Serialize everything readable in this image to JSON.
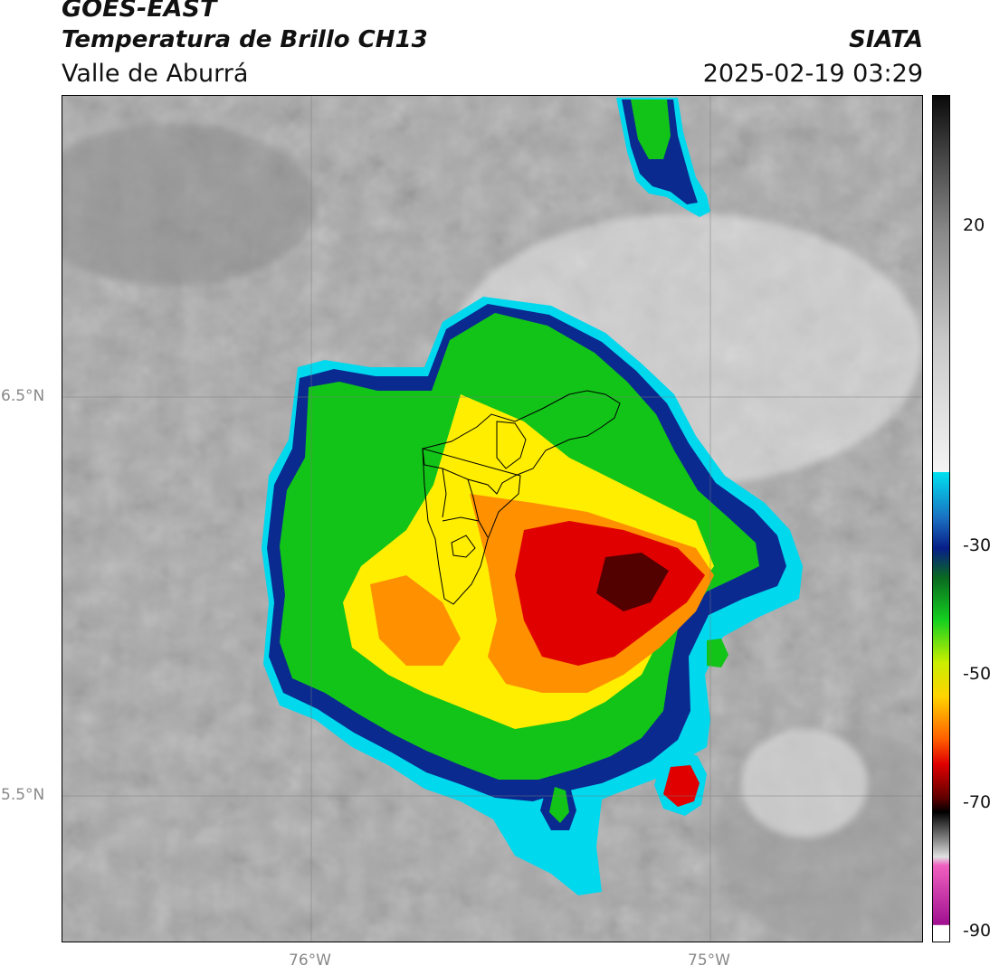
{
  "header": {
    "satellite": "GOES-EAST",
    "product": "Temperatura de Brillo CH13",
    "region": "Valle de Aburrá",
    "organization": "SIATA",
    "timestamp": "2025-02-19 03:29"
  },
  "map": {
    "lat_labels": [
      "6.5°N",
      "5.5°N"
    ],
    "lon_labels": [
      "76°W",
      "75°W"
    ]
  },
  "colorbar": {
    "tick_labels": [
      "20",
      "-30",
      "-50",
      "-70",
      "-90"
    ],
    "range": [
      -90,
      40
    ],
    "colors": {
      "gray_dark": "#2a2a2a",
      "gray_light": "#f2f2f2",
      "cyan": "#00d8ee",
      "blue": "#0a2a90",
      "green": "#12c418",
      "yellow": "#ffee00",
      "orange": "#ff9000",
      "red": "#e00000",
      "black": "#150000",
      "magenta": "#b020a8"
    }
  }
}
